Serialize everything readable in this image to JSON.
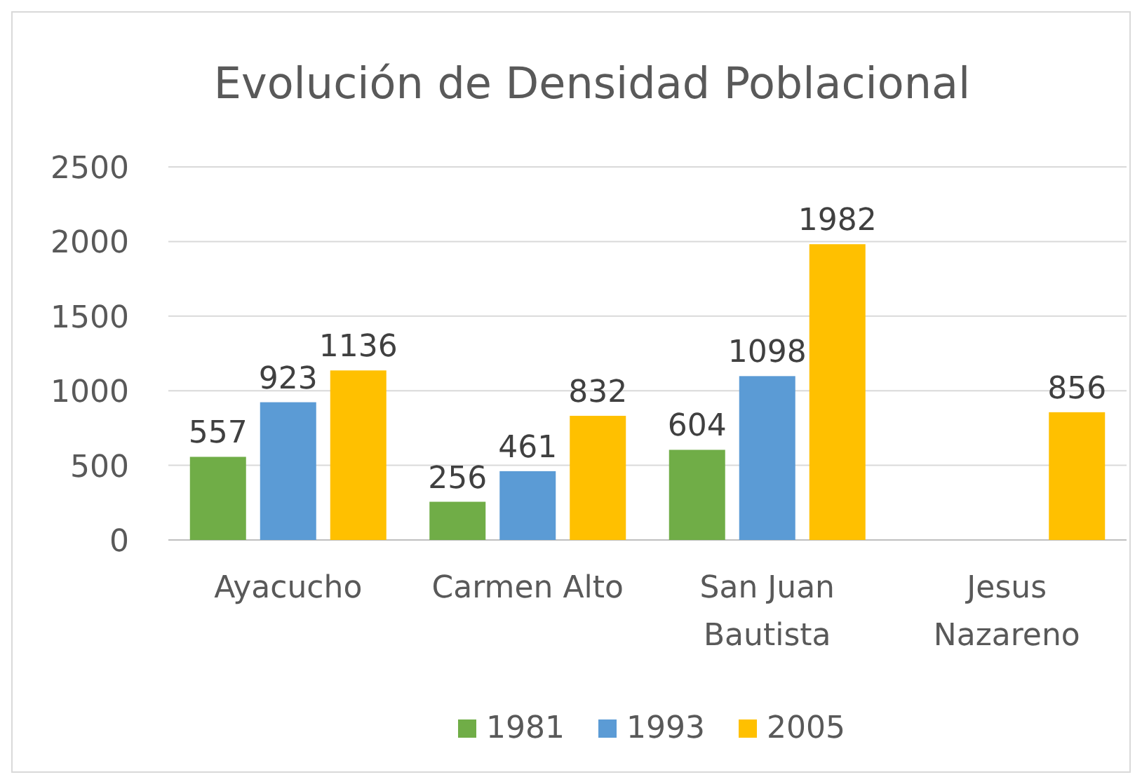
{
  "chart_data": {
    "type": "bar",
    "title": "Evolución de Densidad Poblacional",
    "categories": [
      "Ayacucho",
      "Carmen Alto",
      "San Juan Bautista",
      "Jesus Nazareno"
    ],
    "series": [
      {
        "name": "1981",
        "color": "#70ad47",
        "values": [
          557,
          256,
          604,
          null
        ]
      },
      {
        "name": "1993",
        "color": "#5b9bd5",
        "values": [
          923,
          461,
          1098,
          null
        ]
      },
      {
        "name": "2005",
        "color": "#ffc000",
        "values": [
          1136,
          832,
          1982,
          856
        ]
      }
    ],
    "ylim": [
      0,
      2500
    ],
    "yticks": [
      0,
      500,
      1000,
      1500,
      2000,
      2500
    ],
    "grid": "y",
    "legend": "bottom",
    "data_labels": true
  }
}
